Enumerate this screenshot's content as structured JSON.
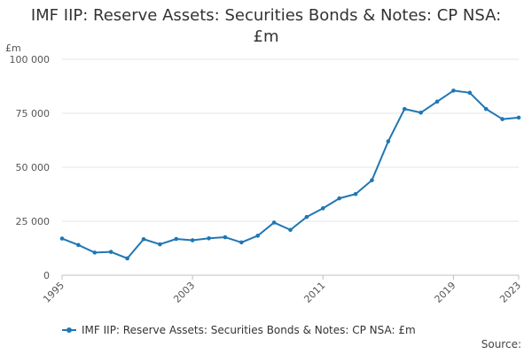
{
  "chart_data": {
    "type": "line",
    "title": "IMF IIP: Reserve Assets: Securities Bonds & Notes: CP NSA: £m",
    "ylabel": "£m",
    "xlabel": "",
    "ylim": [
      0,
      100000
    ],
    "yticks": [
      0,
      25000,
      50000,
      75000,
      100000
    ],
    "ytick_labels": [
      "0",
      "25 000",
      "50 000",
      "75 000",
      "100 000"
    ],
    "xlim": [
      1995,
      2023
    ],
    "xticks": [
      1995,
      2003,
      2011,
      2019,
      2023
    ],
    "xtick_labels": [
      "1995",
      "2003",
      "2011",
      "2019",
      "2023"
    ],
    "grid": true,
    "legend_position": "bottom",
    "series": [
      {
        "name": "IMF IIP: Reserve Assets: Securities Bonds & Notes: CP NSA: £m",
        "color": "#1f77b4",
        "x": [
          1995,
          1996,
          1997,
          1998,
          1999,
          2000,
          2001,
          2002,
          2003,
          2004,
          2005,
          2006,
          2007,
          2008,
          2009,
          2010,
          2011,
          2012,
          2013,
          2014,
          2015,
          2016,
          2017,
          2018,
          2019,
          2020,
          2021,
          2022,
          2023
        ],
        "y": [
          17000,
          14000,
          10500,
          10800,
          7800,
          16700,
          14300,
          16800,
          16200,
          17100,
          17600,
          15200,
          18300,
          24400,
          21000,
          27000,
          31000,
          35600,
          37600,
          44000,
          62000,
          77000,
          75300,
          80400,
          85500,
          84500,
          77000,
          72300,
          73000
        ]
      }
    ]
  },
  "source_label": "Source:"
}
